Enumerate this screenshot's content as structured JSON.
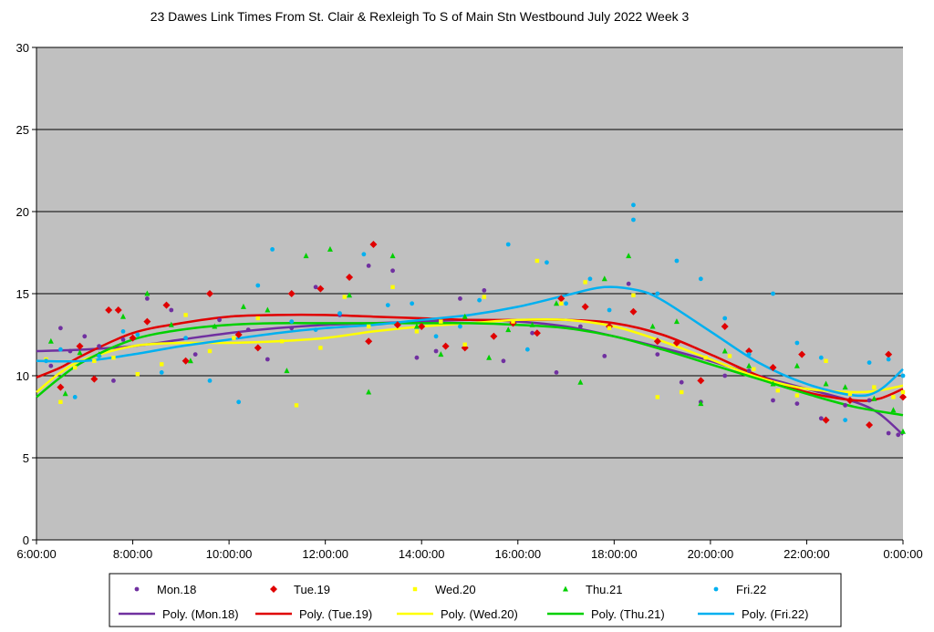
{
  "chart_data": {
    "type": "scatter",
    "title": "23 Dawes Link Times From St. Clair & Rexleigh To S of Main Stn Westbound July 2022  Week 3",
    "xlabel": "",
    "ylabel": "",
    "xlim": [
      "6:00:00",
      "0:00:00"
    ],
    "ylim": [
      0,
      30
    ],
    "x_ticks": [
      "6:00:00",
      "8:00:00",
      "10:00:00",
      "12:00:00",
      "14:00:00",
      "16:00:00",
      "18:00:00",
      "20:00:00",
      "22:00:00",
      "0:00:00"
    ],
    "y_ticks": [
      0,
      5,
      10,
      15,
      20,
      25,
      30
    ],
    "grid": "horizontal",
    "legend_position": "bottom",
    "plot_background": "#c0c0c0",
    "series": [
      {
        "name": "Mon.18",
        "color": "#7030a0",
        "marker": "circle",
        "trend_name": "Poly. (Mon.18)",
        "trend": [
          [
            6.0,
            11.5
          ],
          [
            7.0,
            11.6
          ],
          [
            8.0,
            11.8
          ],
          [
            9.0,
            12.2
          ],
          [
            10.0,
            12.6
          ],
          [
            11.0,
            12.9
          ],
          [
            12.0,
            13.1
          ],
          [
            13.0,
            13.2
          ],
          [
            14.0,
            13.3
          ],
          [
            15.0,
            13.4
          ],
          [
            16.0,
            13.3
          ],
          [
            17.0,
            13.0
          ],
          [
            18.0,
            12.4
          ],
          [
            19.0,
            11.7
          ],
          [
            20.0,
            10.9
          ],
          [
            21.0,
            10.0
          ],
          [
            22.0,
            9.2
          ],
          [
            23.0,
            8.4
          ],
          [
            23.5,
            7.7
          ],
          [
            24.0,
            6.4
          ]
        ],
        "points": [
          [
            6.3,
            10.6
          ],
          [
            6.5,
            12.9
          ],
          [
            6.7,
            11.5
          ],
          [
            7.0,
            12.4
          ],
          [
            7.3,
            11.8
          ],
          [
            7.6,
            9.7
          ],
          [
            7.8,
            12.2
          ],
          [
            8.3,
            14.7
          ],
          [
            8.8,
            14.0
          ],
          [
            9.3,
            11.3
          ],
          [
            9.8,
            13.4
          ],
          [
            10.4,
            12.8
          ],
          [
            10.8,
            11.0
          ],
          [
            11.3,
            12.9
          ],
          [
            11.8,
            15.4
          ],
          [
            12.3,
            13.7
          ],
          [
            12.9,
            16.7
          ],
          [
            13.4,
            16.4
          ],
          [
            13.9,
            11.1
          ],
          [
            14.3,
            11.5
          ],
          [
            14.8,
            14.7
          ],
          [
            15.3,
            15.2
          ],
          [
            15.7,
            10.9
          ],
          [
            16.3,
            12.6
          ],
          [
            16.8,
            10.2
          ],
          [
            17.3,
            13.0
          ],
          [
            17.8,
            11.2
          ],
          [
            18.3,
            15.6
          ],
          [
            18.9,
            11.3
          ],
          [
            19.4,
            9.6
          ],
          [
            19.8,
            8.4
          ],
          [
            20.3,
            10.0
          ],
          [
            20.8,
            10.3
          ],
          [
            21.3,
            8.5
          ],
          [
            21.8,
            8.3
          ],
          [
            22.3,
            7.4
          ],
          [
            22.8,
            8.2
          ],
          [
            23.3,
            8.5
          ],
          [
            23.7,
            6.5
          ],
          [
            23.9,
            6.4
          ]
        ]
      },
      {
        "name": "Tue.19",
        "color": "#e00000",
        "marker": "diamond",
        "trend_name": "Poly. (Tue.19)",
        "trend": [
          [
            6.0,
            9.9
          ],
          [
            6.5,
            10.5
          ],
          [
            7.0,
            11.3
          ],
          [
            8.0,
            12.6
          ],
          [
            9.0,
            13.2
          ],
          [
            10.0,
            13.6
          ],
          [
            11.0,
            13.7
          ],
          [
            12.0,
            13.7
          ],
          [
            13.0,
            13.6
          ],
          [
            14.0,
            13.5
          ],
          [
            15.0,
            13.4
          ],
          [
            16.0,
            13.4
          ],
          [
            17.0,
            13.4
          ],
          [
            18.0,
            13.2
          ],
          [
            19.0,
            12.5
          ],
          [
            20.0,
            11.3
          ],
          [
            21.0,
            10.0
          ],
          [
            22.0,
            9.0
          ],
          [
            23.0,
            8.5
          ],
          [
            23.5,
            8.6
          ],
          [
            24.0,
            9.2
          ]
        ],
        "points": [
          [
            6.5,
            9.3
          ],
          [
            6.9,
            11.8
          ],
          [
            7.2,
            9.8
          ],
          [
            7.5,
            14.0
          ],
          [
            7.7,
            14.0
          ],
          [
            8.0,
            12.3
          ],
          [
            8.3,
            13.3
          ],
          [
            8.7,
            14.3
          ],
          [
            9.1,
            10.9
          ],
          [
            9.6,
            15.0
          ],
          [
            10.2,
            12.5
          ],
          [
            10.6,
            11.7
          ],
          [
            11.3,
            15.0
          ],
          [
            11.9,
            15.3
          ],
          [
            12.5,
            16.0
          ],
          [
            12.9,
            12.1
          ],
          [
            13.0,
            18.0
          ],
          [
            13.5,
            13.1
          ],
          [
            14.0,
            13.0
          ],
          [
            14.5,
            11.8
          ],
          [
            14.9,
            11.7
          ],
          [
            15.5,
            12.4
          ],
          [
            15.9,
            13.2
          ],
          [
            16.4,
            12.6
          ],
          [
            16.9,
            14.7
          ],
          [
            17.4,
            14.2
          ],
          [
            17.9,
            13.0
          ],
          [
            18.4,
            13.9
          ],
          [
            18.9,
            12.1
          ],
          [
            19.3,
            12.0
          ],
          [
            19.8,
            9.7
          ],
          [
            20.3,
            13.0
          ],
          [
            20.8,
            11.5
          ],
          [
            21.3,
            10.5
          ],
          [
            21.9,
            11.3
          ],
          [
            22.4,
            7.3
          ],
          [
            22.9,
            8.5
          ],
          [
            23.3,
            7.0
          ],
          [
            23.7,
            11.3
          ],
          [
            24.0,
            8.7
          ]
        ]
      },
      {
        "name": "Wed.20",
        "color": "#ffff00",
        "marker": "square",
        "trend_name": "Poly. (Wed.20)",
        "trend": [
          [
            6.0,
            9.0
          ],
          [
            6.5,
            10.2
          ],
          [
            7.0,
            11.0
          ],
          [
            8.0,
            11.8
          ],
          [
            9.0,
            12.0
          ],
          [
            10.0,
            12.0
          ],
          [
            11.0,
            12.1
          ],
          [
            12.0,
            12.3
          ],
          [
            13.0,
            12.7
          ],
          [
            14.0,
            13.0
          ],
          [
            15.0,
            13.2
          ],
          [
            16.0,
            13.4
          ],
          [
            17.0,
            13.4
          ],
          [
            18.0,
            13.0
          ],
          [
            19.0,
            12.1
          ],
          [
            20.0,
            11.0
          ],
          [
            21.0,
            9.9
          ],
          [
            22.0,
            9.2
          ],
          [
            23.0,
            9.0
          ],
          [
            23.5,
            9.1
          ],
          [
            24.0,
            9.4
          ]
        ],
        "points": [
          [
            6.2,
            11.0
          ],
          [
            6.5,
            8.4
          ],
          [
            6.8,
            10.5
          ],
          [
            7.2,
            10.9
          ],
          [
            7.6,
            11.1
          ],
          [
            8.1,
            10.1
          ],
          [
            8.6,
            10.7
          ],
          [
            9.1,
            13.7
          ],
          [
            9.6,
            11.5
          ],
          [
            10.1,
            12.3
          ],
          [
            10.6,
            13.5
          ],
          [
            11.1,
            12.1
          ],
          [
            11.4,
            8.2
          ],
          [
            11.9,
            11.7
          ],
          [
            12.4,
            14.8
          ],
          [
            12.9,
            13.0
          ],
          [
            13.4,
            15.4
          ],
          [
            13.9,
            12.7
          ],
          [
            14.4,
            13.3
          ],
          [
            14.9,
            11.9
          ],
          [
            15.3,
            14.8
          ],
          [
            15.9,
            13.3
          ],
          [
            16.4,
            17.0
          ],
          [
            16.9,
            14.4
          ],
          [
            17.4,
            15.7
          ],
          [
            17.9,
            12.9
          ],
          [
            18.4,
            14.9
          ],
          [
            18.9,
            8.7
          ],
          [
            19.4,
            9.0
          ],
          [
            19.9,
            11.1
          ],
          [
            20.4,
            11.2
          ],
          [
            20.9,
            10.4
          ],
          [
            21.4,
            9.1
          ],
          [
            21.8,
            8.8
          ],
          [
            22.4,
            10.9
          ],
          [
            22.9,
            8.9
          ],
          [
            23.4,
            9.3
          ],
          [
            23.8,
            8.7
          ],
          [
            24.0,
            9.0
          ]
        ]
      },
      {
        "name": "Thu.21",
        "color": "#00d000",
        "marker": "triangle",
        "trend_name": "Poly. (Thu.21)",
        "trend": [
          [
            6.0,
            8.7
          ],
          [
            6.5,
            9.9
          ],
          [
            7.0,
            10.9
          ],
          [
            8.0,
            12.2
          ],
          [
            9.0,
            12.8
          ],
          [
            10.0,
            13.1
          ],
          [
            11.0,
            13.2
          ],
          [
            12.0,
            13.2
          ],
          [
            13.0,
            13.2
          ],
          [
            14.0,
            13.2
          ],
          [
            15.0,
            13.2
          ],
          [
            16.0,
            13.1
          ],
          [
            17.0,
            12.9
          ],
          [
            18.0,
            12.4
          ],
          [
            19.0,
            11.6
          ],
          [
            20.0,
            10.7
          ],
          [
            21.0,
            9.8
          ],
          [
            22.0,
            8.9
          ],
          [
            23.0,
            8.1
          ],
          [
            24.0,
            7.6
          ]
        ],
        "points": [
          [
            6.3,
            12.1
          ],
          [
            6.6,
            8.9
          ],
          [
            6.9,
            11.4
          ],
          [
            7.3,
            11.3
          ],
          [
            7.8,
            13.6
          ],
          [
            8.3,
            15.0
          ],
          [
            8.8,
            13.1
          ],
          [
            9.2,
            10.9
          ],
          [
            9.7,
            13.0
          ],
          [
            10.3,
            14.2
          ],
          [
            10.8,
            14.0
          ],
          [
            11.2,
            10.3
          ],
          [
            11.6,
            17.3
          ],
          [
            12.1,
            17.7
          ],
          [
            12.5,
            14.9
          ],
          [
            12.9,
            9.0
          ],
          [
            13.4,
            17.3
          ],
          [
            13.9,
            13.0
          ],
          [
            14.4,
            11.3
          ],
          [
            14.9,
            13.6
          ],
          [
            15.4,
            11.1
          ],
          [
            15.8,
            12.8
          ],
          [
            16.3,
            13.1
          ],
          [
            16.8,
            14.4
          ],
          [
            17.3,
            9.6
          ],
          [
            17.8,
            15.9
          ],
          [
            18.3,
            17.3
          ],
          [
            18.8,
            13.0
          ],
          [
            19.3,
            13.3
          ],
          [
            19.8,
            8.3
          ],
          [
            20.3,
            11.5
          ],
          [
            20.8,
            10.6
          ],
          [
            21.3,
            9.5
          ],
          [
            21.8,
            10.6
          ],
          [
            22.4,
            9.5
          ],
          [
            22.8,
            9.3
          ],
          [
            23.4,
            8.6
          ],
          [
            23.8,
            7.9
          ],
          [
            24.0,
            6.6
          ]
        ]
      },
      {
        "name": "Fri.22",
        "color": "#00b0f0",
        "marker": "circle",
        "trend_name": "Poly. (Fri.22)",
        "trend": [
          [
            6.0,
            10.9
          ],
          [
            7.0,
            10.9
          ],
          [
            8.0,
            11.3
          ],
          [
            9.0,
            11.8
          ],
          [
            10.0,
            12.2
          ],
          [
            11.0,
            12.6
          ],
          [
            12.0,
            12.9
          ],
          [
            13.0,
            13.1
          ],
          [
            14.0,
            13.4
          ],
          [
            15.0,
            13.7
          ],
          [
            16.0,
            14.2
          ],
          [
            17.0,
            14.9
          ],
          [
            17.8,
            15.4
          ],
          [
            18.5,
            15.2
          ],
          [
            19.0,
            14.6
          ],
          [
            20.0,
            12.7
          ],
          [
            21.0,
            10.8
          ],
          [
            22.0,
            9.5
          ],
          [
            23.0,
            8.8
          ],
          [
            23.5,
            9.1
          ],
          [
            24.0,
            10.4
          ]
        ],
        "points": [
          [
            6.2,
            10.9
          ],
          [
            6.5,
            11.6
          ],
          [
            6.8,
            8.7
          ],
          [
            7.3,
            11.2
          ],
          [
            7.8,
            12.7
          ],
          [
            8.1,
            12.5
          ],
          [
            8.6,
            10.2
          ],
          [
            9.1,
            12.3
          ],
          [
            9.6,
            9.7
          ],
          [
            10.2,
            8.4
          ],
          [
            10.6,
            15.5
          ],
          [
            10.9,
            17.7
          ],
          [
            11.3,
            13.3
          ],
          [
            11.8,
            12.8
          ],
          [
            12.3,
            13.8
          ],
          [
            12.8,
            17.4
          ],
          [
            13.3,
            14.3
          ],
          [
            13.8,
            14.4
          ],
          [
            14.3,
            12.4
          ],
          [
            14.8,
            13.0
          ],
          [
            15.2,
            14.6
          ],
          [
            15.8,
            18.0
          ],
          [
            16.2,
            11.6
          ],
          [
            16.6,
            16.9
          ],
          [
            17.0,
            14.4
          ],
          [
            17.5,
            15.9
          ],
          [
            17.9,
            14.0
          ],
          [
            18.4,
            20.4
          ],
          [
            18.4,
            19.5
          ],
          [
            18.9,
            15.0
          ],
          [
            19.3,
            17.0
          ],
          [
            19.8,
            15.9
          ],
          [
            20.3,
            13.5
          ],
          [
            20.8,
            11.3
          ],
          [
            21.3,
            15.0
          ],
          [
            21.8,
            12.0
          ],
          [
            22.3,
            11.1
          ],
          [
            22.8,
            7.3
          ],
          [
            23.3,
            10.8
          ],
          [
            23.7,
            11.0
          ],
          [
            24.0,
            10.0
          ]
        ]
      }
    ]
  }
}
